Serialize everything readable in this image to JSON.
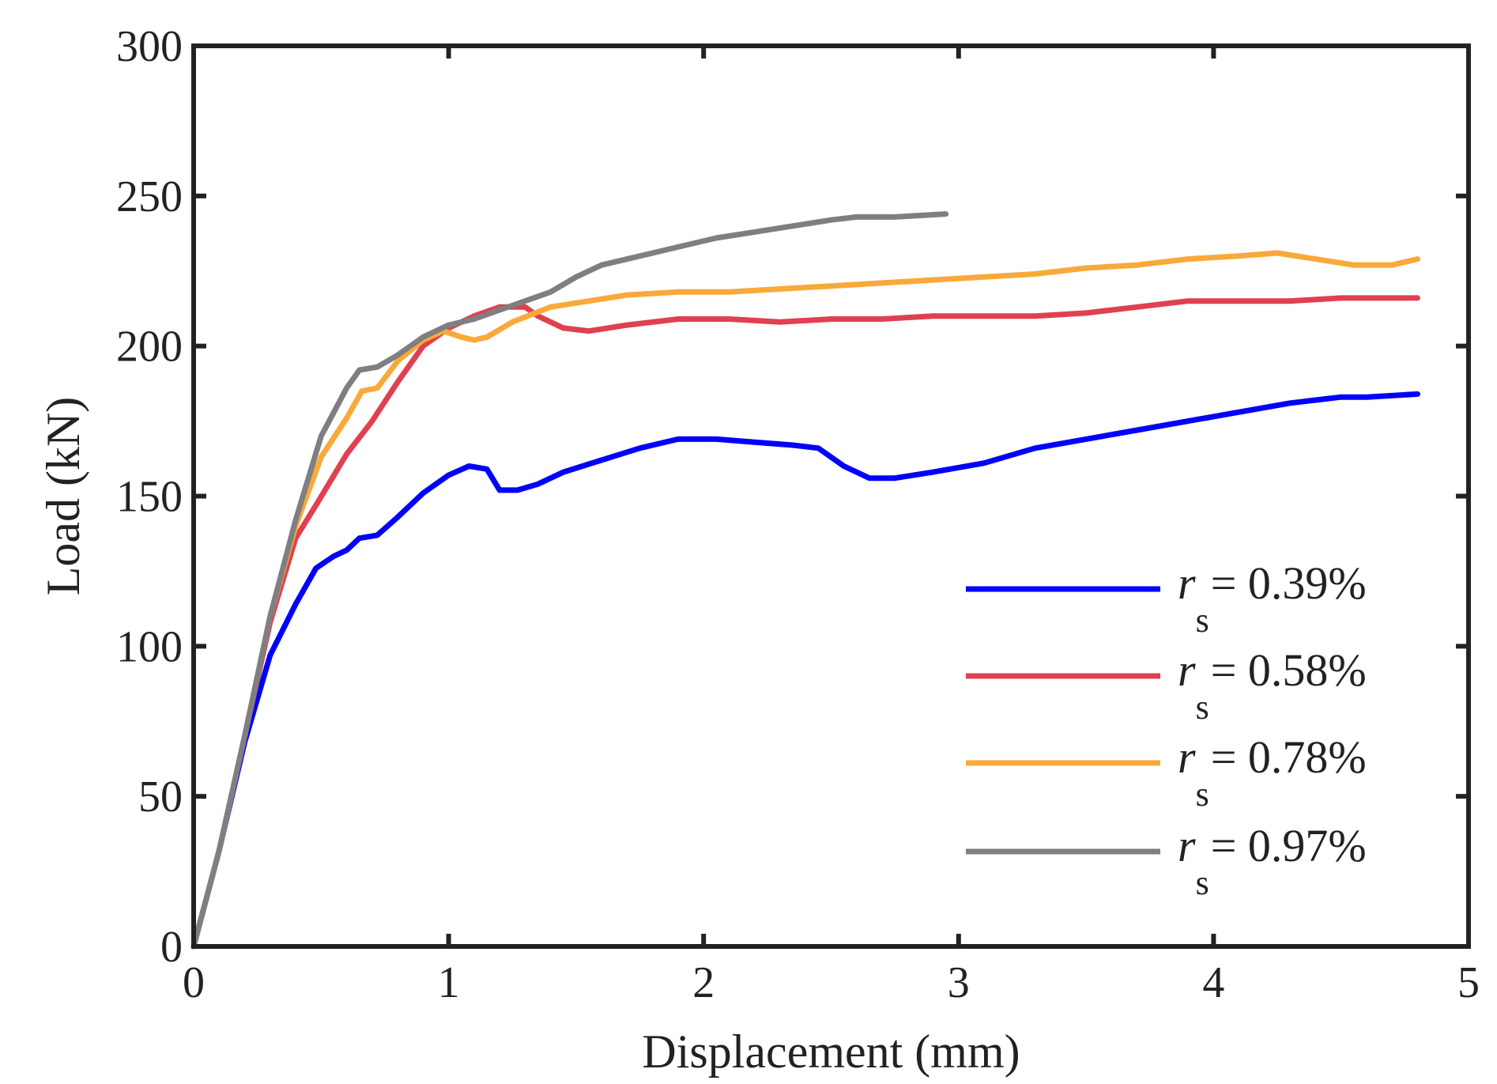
{
  "chart_data": {
    "type": "line",
    "title": "",
    "xlabel": "Displacement (mm)",
    "ylabel": "Load (kN)",
    "xlim": [
      0,
      5
    ],
    "ylim": [
      0,
      300
    ],
    "xticks": [
      "0",
      "1",
      "2",
      "3",
      "4",
      "5"
    ],
    "yticks": [
      "0",
      "50",
      "100",
      "150",
      "200",
      "250",
      "300"
    ],
    "grid": false,
    "legend_position": "lower-right",
    "series": [
      {
        "name_symbol": "r",
        "name_subscript": "s",
        "name_value": "= 0.39%",
        "color": "#0000ff",
        "points": [
          [
            0,
            0
          ],
          [
            0.1,
            32
          ],
          [
            0.2,
            68
          ],
          [
            0.3,
            97
          ],
          [
            0.4,
            114
          ],
          [
            0.48,
            126
          ],
          [
            0.55,
            130
          ],
          [
            0.6,
            132
          ],
          [
            0.65,
            136
          ],
          [
            0.72,
            137
          ],
          [
            0.8,
            143
          ],
          [
            0.9,
            151
          ],
          [
            1.0,
            157
          ],
          [
            1.08,
            160
          ],
          [
            1.15,
            159
          ],
          [
            1.2,
            152
          ],
          [
            1.27,
            152
          ],
          [
            1.35,
            154
          ],
          [
            1.45,
            158
          ],
          [
            1.6,
            162
          ],
          [
            1.75,
            166
          ],
          [
            1.9,
            169
          ],
          [
            2.05,
            169
          ],
          [
            2.2,
            168
          ],
          [
            2.35,
            167
          ],
          [
            2.45,
            166
          ],
          [
            2.55,
            160
          ],
          [
            2.65,
            156
          ],
          [
            2.75,
            156
          ],
          [
            2.9,
            158
          ],
          [
            3.1,
            161
          ],
          [
            3.3,
            166
          ],
          [
            3.5,
            169
          ],
          [
            3.7,
            172
          ],
          [
            3.9,
            175
          ],
          [
            4.1,
            178
          ],
          [
            4.3,
            181
          ],
          [
            4.5,
            183
          ],
          [
            4.6,
            183
          ],
          [
            4.8,
            184
          ]
        ]
      },
      {
        "name_symbol": "r",
        "name_subscript": "s",
        "name_value": "= 0.58%",
        "color": "#e04050",
        "points": [
          [
            0,
            0
          ],
          [
            0.1,
            32
          ],
          [
            0.2,
            70
          ],
          [
            0.3,
            108
          ],
          [
            0.4,
            136
          ],
          [
            0.48,
            147
          ],
          [
            0.6,
            164
          ],
          [
            0.7,
            175
          ],
          [
            0.8,
            188
          ],
          [
            0.9,
            200
          ],
          [
            1.0,
            206
          ],
          [
            1.1,
            210
          ],
          [
            1.2,
            213
          ],
          [
            1.3,
            213
          ],
          [
            1.35,
            210
          ],
          [
            1.45,
            206
          ],
          [
            1.55,
            205
          ],
          [
            1.7,
            207
          ],
          [
            1.9,
            209
          ],
          [
            2.1,
            209
          ],
          [
            2.3,
            208
          ],
          [
            2.5,
            209
          ],
          [
            2.7,
            209
          ],
          [
            2.9,
            210
          ],
          [
            3.1,
            210
          ],
          [
            3.3,
            210
          ],
          [
            3.5,
            211
          ],
          [
            3.7,
            213
          ],
          [
            3.9,
            215
          ],
          [
            4.1,
            215
          ],
          [
            4.3,
            215
          ],
          [
            4.5,
            216
          ],
          [
            4.8,
            216
          ]
        ]
      },
      {
        "name_symbol": "r",
        "name_subscript": "s",
        "name_value": "= 0.78%",
        "color": "#f9a93a",
        "points": [
          [
            0,
            0
          ],
          [
            0.1,
            32
          ],
          [
            0.2,
            70
          ],
          [
            0.3,
            110
          ],
          [
            0.4,
            140
          ],
          [
            0.5,
            163
          ],
          [
            0.6,
            176
          ],
          [
            0.66,
            185
          ],
          [
            0.72,
            186
          ],
          [
            0.8,
            195
          ],
          [
            0.9,
            202
          ],
          [
            0.98,
            205
          ],
          [
            1.05,
            203
          ],
          [
            1.1,
            202
          ],
          [
            1.15,
            203
          ],
          [
            1.25,
            208
          ],
          [
            1.4,
            213
          ],
          [
            1.55,
            215
          ],
          [
            1.7,
            217
          ],
          [
            1.9,
            218
          ],
          [
            2.1,
            218
          ],
          [
            2.3,
            219
          ],
          [
            2.5,
            220
          ],
          [
            2.7,
            221
          ],
          [
            2.9,
            222
          ],
          [
            3.1,
            223
          ],
          [
            3.3,
            224
          ],
          [
            3.5,
            226
          ],
          [
            3.7,
            227
          ],
          [
            3.9,
            229
          ],
          [
            4.1,
            230
          ],
          [
            4.25,
            231
          ],
          [
            4.4,
            229
          ],
          [
            4.55,
            227
          ],
          [
            4.7,
            227
          ],
          [
            4.8,
            229
          ]
        ]
      },
      {
        "name_symbol": "r",
        "name_subscript": "s",
        "name_value": "= 0.97%",
        "color": "#7f7f81",
        "points": [
          [
            0,
            0
          ],
          [
            0.1,
            32
          ],
          [
            0.2,
            70
          ],
          [
            0.3,
            110
          ],
          [
            0.4,
            142
          ],
          [
            0.5,
            170
          ],
          [
            0.6,
            186
          ],
          [
            0.65,
            192
          ],
          [
            0.72,
            193
          ],
          [
            0.8,
            197
          ],
          [
            0.9,
            203
          ],
          [
            1.0,
            207
          ],
          [
            1.1,
            209
          ],
          [
            1.2,
            212
          ],
          [
            1.3,
            215
          ],
          [
            1.4,
            218
          ],
          [
            1.5,
            223
          ],
          [
            1.6,
            227
          ],
          [
            1.75,
            230
          ],
          [
            1.9,
            233
          ],
          [
            2.05,
            236
          ],
          [
            2.2,
            238
          ],
          [
            2.35,
            240
          ],
          [
            2.5,
            242
          ],
          [
            2.6,
            243
          ],
          [
            2.75,
            243
          ],
          [
            2.95,
            244
          ]
        ]
      }
    ]
  }
}
